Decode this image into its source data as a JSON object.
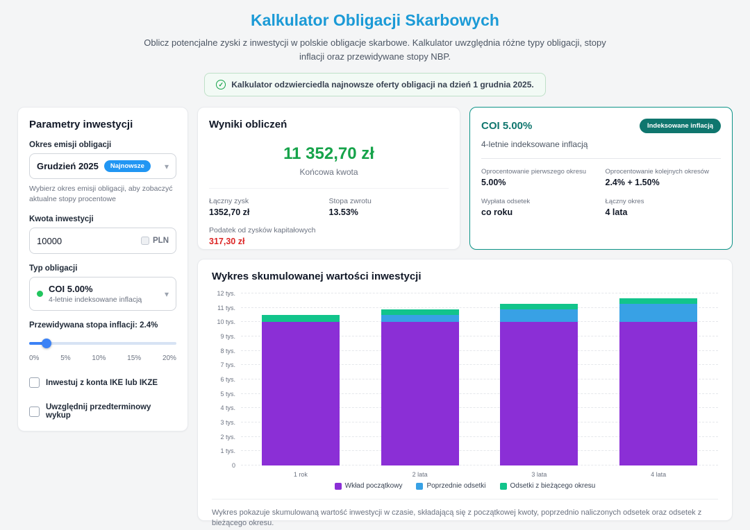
{
  "page": {
    "title": "Kalkulator Obligacji Skarbowych",
    "subtitle": "Oblicz potencjalne zyski z inwestycji w polskie obligacje skarbowe. Kalkulator uwzględnia różne typy obligacji, stopy inflacji oraz przewidywane stopy NBP.",
    "notice": "Kalkulator odzwierciedla najnowsze oferty obligacji na dzień 1 grudnia 2025."
  },
  "colors": {
    "title_blue": "#1b9ad6",
    "success_green": "#16a34a",
    "danger_red": "#dc2626",
    "accent_teal": "#0f766e",
    "badge_blue": "#2196f3",
    "slider_blue": "#3b82f6"
  },
  "params": {
    "title": "Parametry inwestycji",
    "period_label": "Okres emisji obligacji",
    "period_value": "Grudzień 2025",
    "period_badge": "Najnowsze",
    "period_help": "Wybierz okres emisji obligacji, aby zobaczyć aktualne stopy procentowe",
    "amount_label": "Kwota inwestycji",
    "amount_value": "10000",
    "amount_currency": "PLN",
    "bond_label": "Typ obligacji",
    "bond_value": "COI 5.00%",
    "bond_desc": "4-letnie indeksowane inflacją",
    "inflation_label": "Przewidywana stopa inflacji: 2.4%",
    "slider_ticks": [
      "0%",
      "5%",
      "10%",
      "15%",
      "20%"
    ],
    "slider_percent": 12,
    "checkbox_ike": "Inwestuj z konta IKE lub IKZE",
    "checkbox_early": "Uwzględnij przedterminowy wykup"
  },
  "results": {
    "title": "Wyniki obliczeń",
    "final_amount": "11 352,70 zł",
    "final_label": "Końcowa kwota",
    "profit_label": "Łączny zysk",
    "profit_value": "1352,70 zł",
    "return_label": "Stopa zwrotu",
    "return_value": "13.53%",
    "tax_label": "Podatek od zysków kapitałowych",
    "tax_value": "317,30 zł"
  },
  "bond_details": {
    "title": "COI 5.00%",
    "badge": "Indeksowane inflacją",
    "subtitle": "4-letnie indeksowane inflacją",
    "first_rate_label": "Oprocentowanie pierwszego okresu",
    "first_rate_value": "5.00%",
    "next_rate_label": "Oprocentowanie kolejnych okresów",
    "next_rate_value": "2.4% + 1.50%",
    "payout_label": "Wypłata odsetek",
    "payout_value": "co roku",
    "period_label": "Łączny okres",
    "period_value": "4 lata"
  },
  "chart": {
    "title": "Wykres skumulowanej wartości inwestycji",
    "footnote": "Wykres pokazuje skumulowaną wartość inwestycji w czasie, składającą się z początkowej kwoty, poprzednio naliczonych odsetek oraz odsetek z bieżącego okresu."
  },
  "chart_data": {
    "type": "bar",
    "stacked": true,
    "title": "Wykres skumulowanej wartości inwestycji",
    "categories": [
      "1 rok",
      "2 lata",
      "3 lata",
      "4 lata"
    ],
    "series": [
      {
        "name": "Wkład początkowy",
        "color": "#8b2fd6",
        "values": [
          10000,
          10000,
          10000,
          10000
        ]
      },
      {
        "name": "Poprzednie odsetki",
        "color": "#38a1e5",
        "values": [
          0,
          500,
          890,
          1280
        ]
      },
      {
        "name": "Odsetki z bieżącego okresu",
        "color": "#12c48b",
        "values": [
          500,
          390,
          390,
          390
        ]
      }
    ],
    "ylim": [
      0,
      12000
    ],
    "yticks": [
      "0",
      "1 tys.",
      "2 tys.",
      "3 tys.",
      "4 tys.",
      "5 tys.",
      "6 tys.",
      "7 tys.",
      "8 tys.",
      "9 tys.",
      "10 tys.",
      "11 tys.",
      "12 tys."
    ],
    "grid": true,
    "legend_position": "bottom"
  }
}
